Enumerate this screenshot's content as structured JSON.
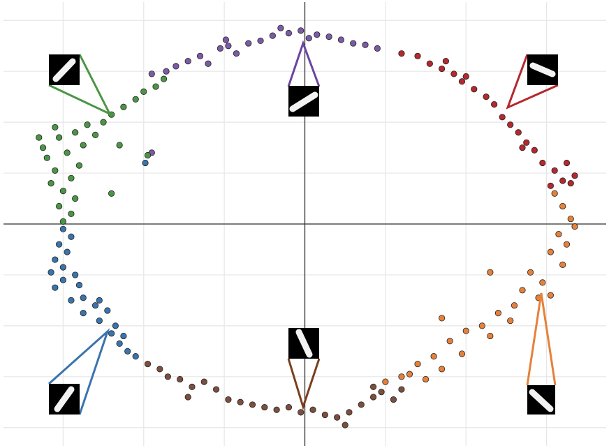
{
  "chart_data": {
    "type": "scatter",
    "grid": true,
    "xlim": [
      -3.74,
      3.74
    ],
    "ylim": [
      -4.36,
      4.36
    ],
    "xticks": [
      -3,
      -2,
      -1,
      0,
      1,
      2,
      3
    ],
    "yticks": [
      -4,
      -3,
      -2,
      -1,
      0,
      1,
      2,
      3,
      4
    ],
    "series": [
      {
        "color": "#7b5aa6",
        "x": [
          -1.72,
          -1.6,
          -1.45,
          -1.3,
          -1.2,
          -1.05,
          -0.95,
          -0.85,
          -0.7,
          -0.55,
          -0.4,
          -0.3,
          -0.2,
          -0.05,
          0.05,
          0.15,
          0.3,
          0.45,
          0.6,
          0.75,
          0.9,
          -0.98,
          -1.9,
          -1.9
        ],
        "y": [
          3.0,
          3.1,
          3.2,
          3.3,
          3.15,
          3.45,
          3.5,
          3.35,
          3.55,
          3.6,
          3.7,
          3.85,
          3.75,
          3.8,
          3.65,
          3.72,
          3.68,
          3.62,
          3.55,
          3.52,
          3.45,
          3.62,
          2.95,
          1.4
        ]
      },
      {
        "color": "#b5282d",
        "x": [
          1.2,
          1.4,
          1.55,
          1.7,
          1.85,
          1.95,
          2.1,
          2.25,
          2.35,
          2.45,
          2.55,
          2.65,
          2.75,
          2.85,
          2.95,
          3.1,
          3.25,
          3.35,
          3.3,
          3.2,
          2.0,
          1.75,
          2.7,
          3.05
        ],
        "y": [
          3.35,
          3.3,
          3.15,
          3.05,
          2.95,
          2.8,
          2.65,
          2.5,
          2.35,
          2.1,
          1.95,
          1.8,
          1.6,
          1.45,
          1.2,
          1.05,
          1.2,
          0.95,
          0.8,
          0.85,
          2.9,
          3.2,
          1.5,
          0.75
        ]
      },
      {
        "color": "#e6813a",
        "x": [
          3.1,
          3.2,
          3.3,
          3.35,
          3.15,
          3.25,
          3.05,
          3.2,
          2.8,
          2.95,
          2.7,
          2.9,
          2.6,
          2.4,
          2.55,
          2.2,
          2.0,
          2.3,
          1.8,
          1.95,
          1.6,
          1.4,
          1.7,
          1.3,
          1.5,
          1.0,
          1.2,
          2.3,
          1.7,
          3.05
        ],
        "y": [
          0.6,
          0.35,
          0.1,
          -0.05,
          -0.2,
          -0.4,
          -0.55,
          -0.8,
          -0.95,
          -1.15,
          -1.3,
          -1.45,
          -1.6,
          -1.75,
          -1.9,
          -2.0,
          -2.1,
          -2.2,
          -2.3,
          -2.55,
          -2.6,
          -2.75,
          -2.85,
          -2.95,
          -3.05,
          -3.1,
          -3.0,
          -0.95,
          -1.85,
          -1.4
        ]
      },
      {
        "color": "#7b4f3e",
        "x": [
          -1.95,
          -1.8,
          -1.7,
          -1.55,
          -1.4,
          -1.25,
          -1.1,
          -0.95,
          -0.8,
          -0.65,
          -0.5,
          -0.35,
          -0.2,
          -0.05,
          0.1,
          0.25,
          0.4,
          0.55,
          0.7,
          0.85,
          0.95,
          1.1,
          1.2,
          -1.45,
          0.5,
          0.85
        ],
        "y": [
          -2.75,
          -2.85,
          -3.0,
          -3.05,
          -3.2,
          -3.1,
          -3.25,
          -3.45,
          -3.5,
          -3.55,
          -3.6,
          -3.65,
          -3.6,
          -3.7,
          -3.65,
          -3.75,
          -3.8,
          -3.7,
          -3.55,
          -3.4,
          -3.3,
          -3.45,
          -3.25,
          -3.4,
          -3.95,
          -3.2
        ]
      },
      {
        "color": "#3a74ad",
        "x": [
          -3.0,
          -2.9,
          -3.05,
          -2.95,
          -3.1,
          -3.0,
          -3.15,
          -2.85,
          -3.0,
          -2.8,
          -3.1,
          -2.75,
          -2.9,
          -2.6,
          -2.75,
          -2.45,
          -2.55,
          -2.35,
          -2.4,
          -2.25,
          -2.2,
          -2.1,
          -2.3,
          -2.55,
          -1.98
        ],
        "y": [
          -0.1,
          -0.25,
          -0.4,
          -0.55,
          -0.7,
          -0.85,
          -0.95,
          -1.0,
          -1.1,
          -1.2,
          -1.25,
          -1.45,
          -1.5,
          -1.6,
          -1.75,
          -1.7,
          -1.9,
          -2.0,
          -2.15,
          -2.2,
          -2.5,
          -2.6,
          -2.35,
          -1.5,
          1.2
        ]
      },
      {
        "color": "#4a9645",
        "x": [
          -3.0,
          -2.9,
          -3.05,
          -2.85,
          -3.0,
          -3.15,
          -2.9,
          -3.1,
          -2.8,
          -3.2,
          -2.95,
          -2.75,
          -3.05,
          -3.3,
          -2.85,
          -3.1,
          -2.7,
          -2.5,
          -2.6,
          -2.4,
          -2.25,
          -2.1,
          -2.0,
          -1.85,
          -1.75,
          -2.3,
          -1.95,
          -2.4,
          -3.25
        ],
        "y": [
          0.05,
          0.2,
          0.35,
          0.5,
          0.65,
          0.8,
          0.9,
          1.05,
          1.15,
          1.3,
          1.4,
          1.55,
          1.7,
          1.7,
          1.8,
          1.9,
          1.95,
          2.0,
          1.75,
          2.15,
          2.3,
          2.45,
          2.6,
          2.7,
          2.85,
          1.55,
          1.35,
          0.6,
          1.5
        ]
      }
    ]
  }
}
